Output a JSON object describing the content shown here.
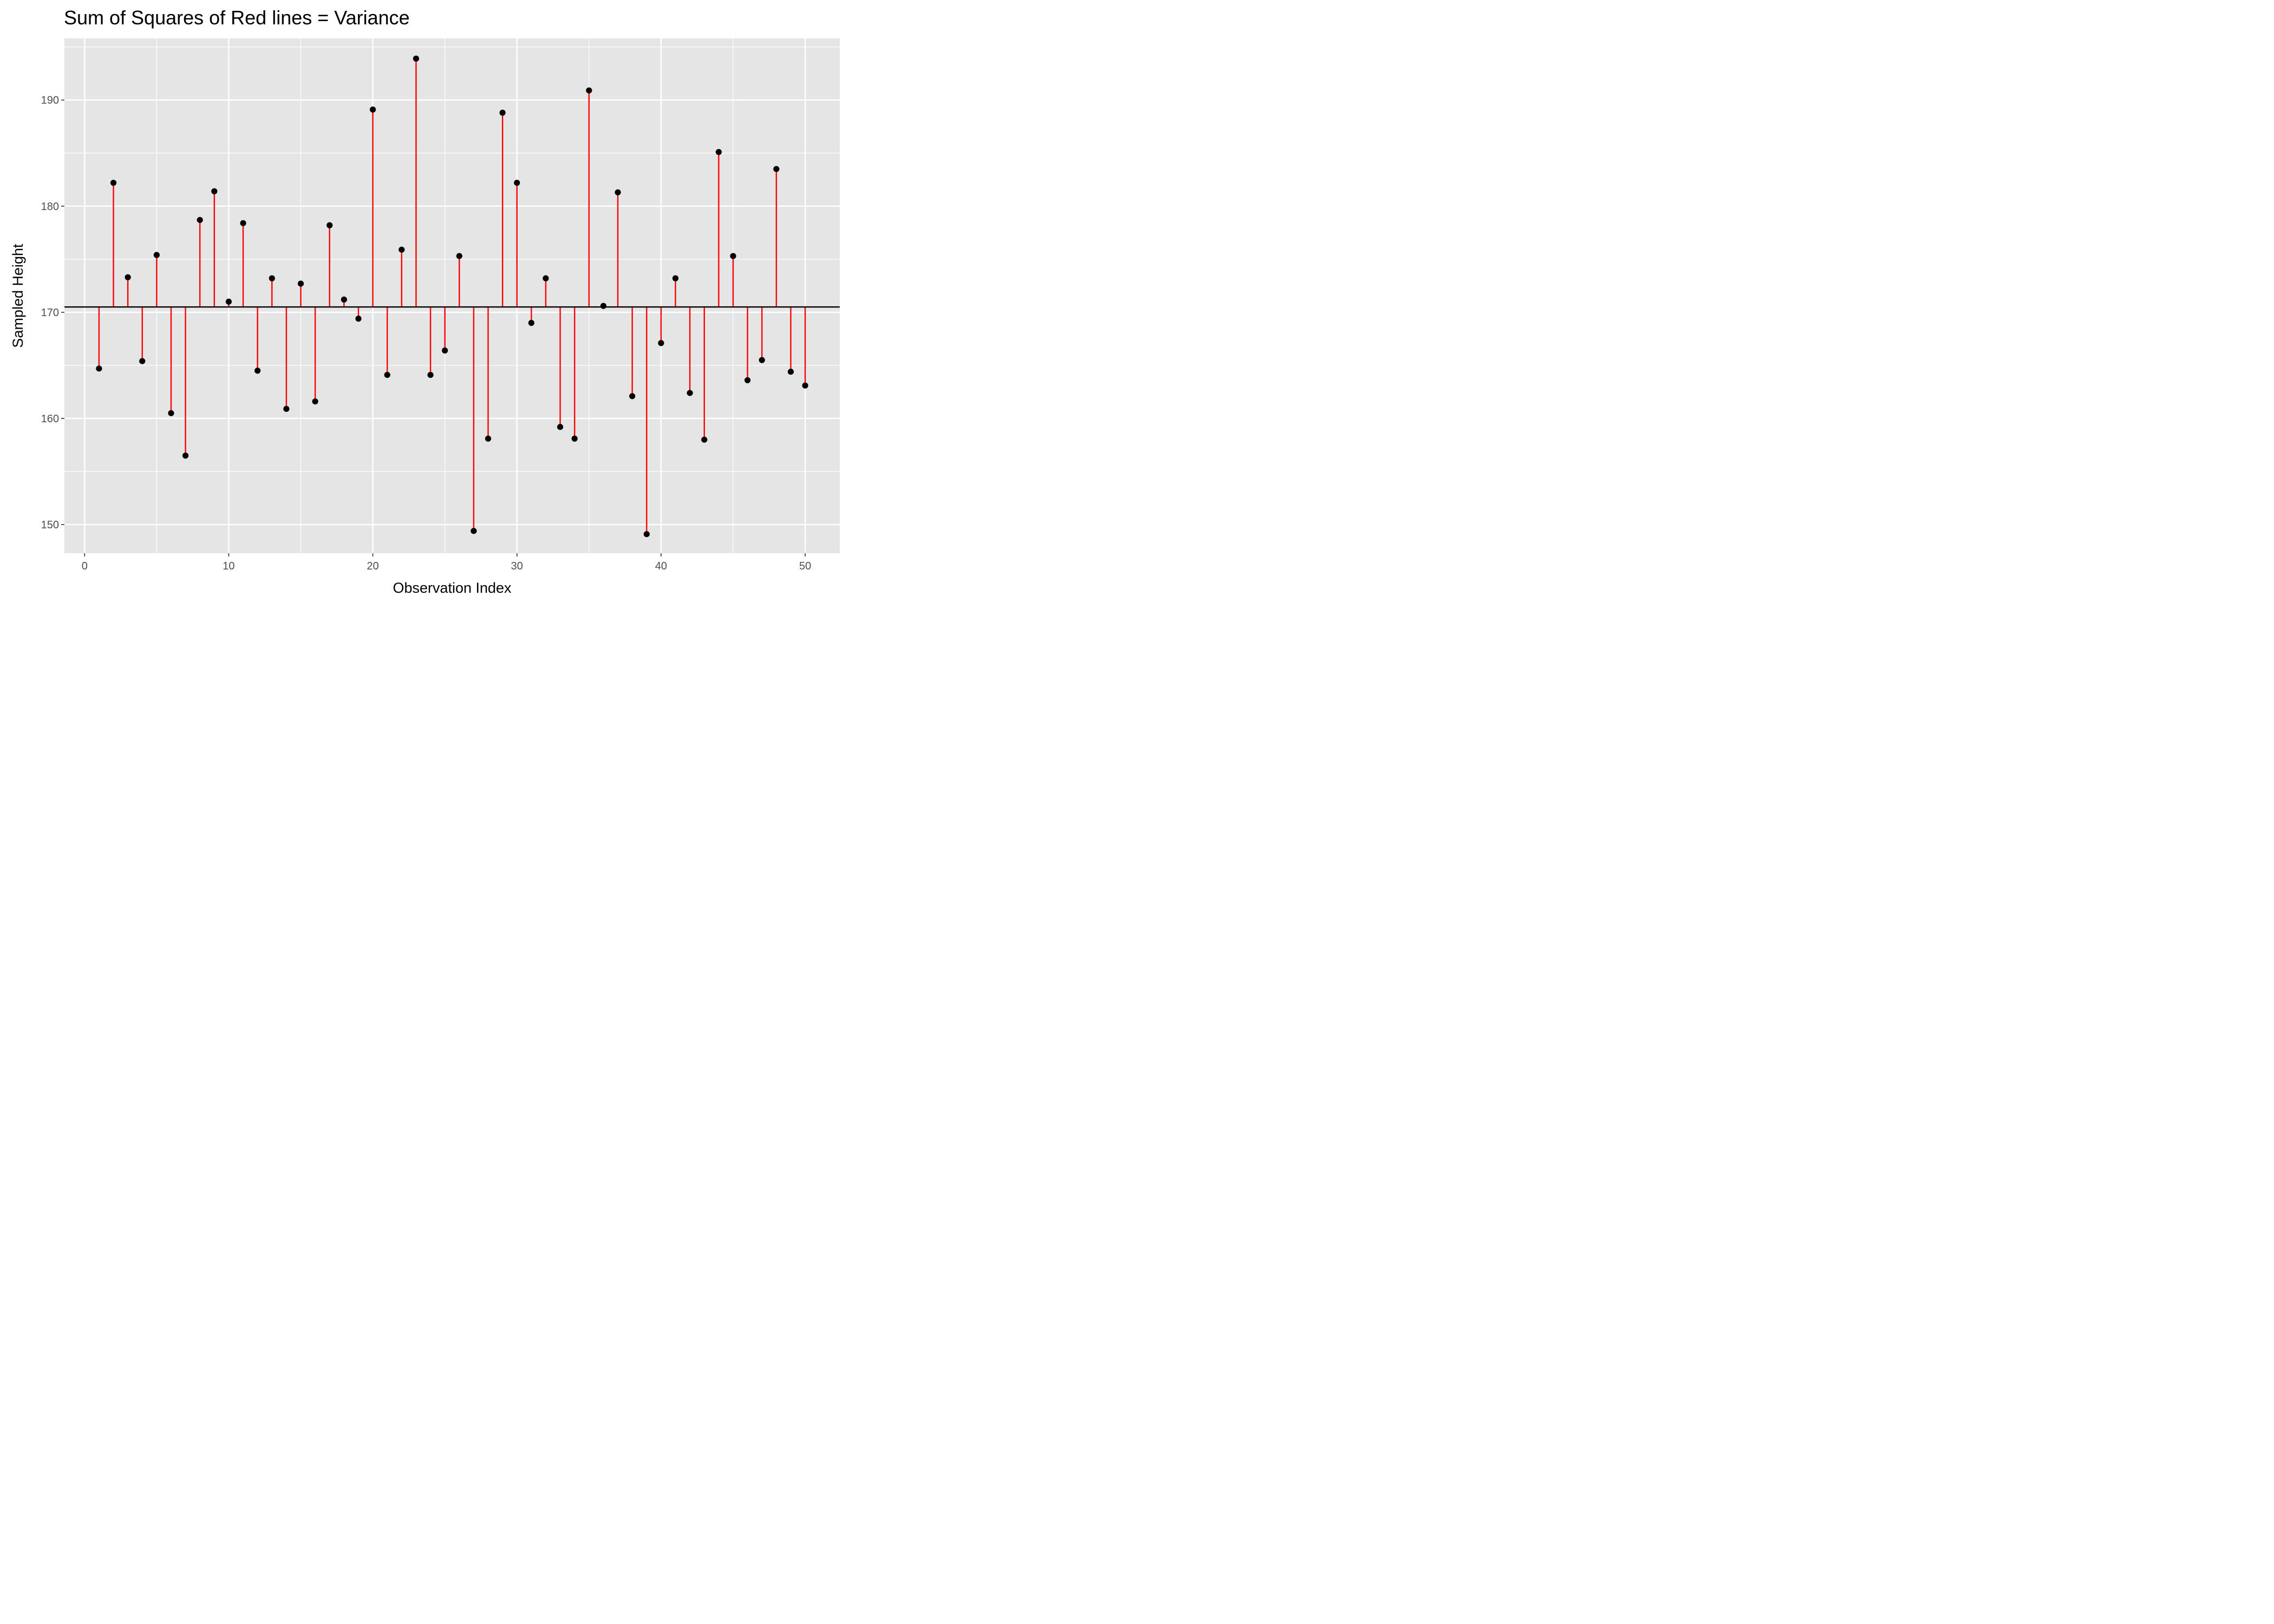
{
  "chart_data": {
    "type": "scatter",
    "title": "Sum of Squares of Red lines = Variance",
    "xlabel": "Observation Index",
    "ylabel": "Sampled Height",
    "xlim": [
      -1.4,
      52.4
    ],
    "ylim": [
      147.3,
      195.8
    ],
    "x_ticks": [
      0,
      10,
      20,
      30,
      40,
      50
    ],
    "x_minor_ticks": [
      5,
      15,
      25,
      35,
      45
    ],
    "y_ticks": [
      150,
      160,
      170,
      180,
      190
    ],
    "y_minor_ticks": [
      155,
      165,
      175,
      185,
      195
    ],
    "mean_line": 170.5,
    "grid": true,
    "legend": "none",
    "x": [
      1,
      2,
      3,
      4,
      5,
      6,
      7,
      8,
      9,
      10,
      11,
      12,
      13,
      14,
      15,
      16,
      17,
      18,
      19,
      20,
      21,
      22,
      23,
      24,
      25,
      26,
      27,
      28,
      29,
      30,
      31,
      32,
      33,
      34,
      35,
      36,
      37,
      38,
      39,
      40,
      41,
      42,
      43,
      44,
      45,
      46,
      47,
      48,
      49,
      50
    ],
    "y": [
      164.7,
      182.2,
      173.3,
      165.4,
      175.4,
      160.5,
      156.5,
      178.7,
      181.4,
      171.0,
      178.4,
      164.5,
      173.2,
      160.9,
      172.7,
      161.6,
      178.2,
      171.2,
      169.4,
      189.1,
      164.1,
      175.9,
      193.9,
      164.1,
      166.4,
      175.3,
      149.4,
      158.1,
      188.8,
      182.2,
      169.0,
      173.2,
      159.2,
      158.1,
      190.9,
      170.6,
      181.3,
      162.1,
      149.1,
      167.1,
      173.2,
      162.4,
      158.0,
      185.1,
      175.3,
      163.6,
      165.5,
      183.5,
      164.4,
      163.1
    ],
    "colors": {
      "panel_background": "#e5e5e5",
      "grid": "#ffffff",
      "points": "#000000",
      "residual_lines": "#ff0000",
      "mean_line": "#000000",
      "tick_labels": "#4d4d4d"
    }
  }
}
